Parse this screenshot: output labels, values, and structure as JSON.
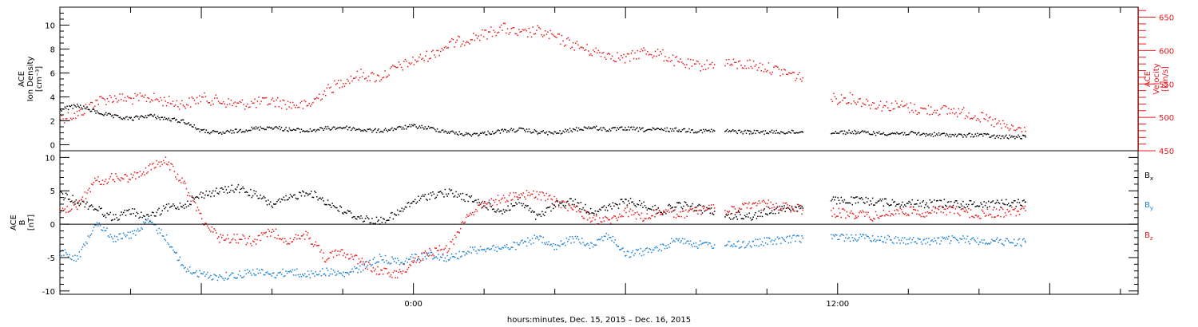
{
  "colors": {
    "axis": "#000000",
    "density": "#000000",
    "velocity": "#e41a1c",
    "bx": "#000000",
    "by": "#1c7fd4",
    "bz": "#e41a1c"
  },
  "chart_data": [
    {
      "type": "scatter",
      "panel": "top",
      "ylabel_lines": [
        "ACE",
        "Ion Density",
        "[cm⁻³]"
      ],
      "ylim": [
        -0.5,
        11.5
      ],
      "yticks": [
        0,
        2,
        4,
        6,
        8,
        10
      ],
      "y2label_lines": [
        "ACE",
        "Velocity",
        "[km/s]"
      ],
      "y2lim": [
        450,
        665
      ],
      "y2ticks": [
        450,
        500,
        550,
        600,
        650
      ],
      "xlim_hours": [
        -10,
        20.5
      ],
      "grid": false,
      "series": [
        {
          "key": "density",
          "axis": "left",
          "segments": [
            {
              "x": [
                -10.0,
                -9.5,
                -9.0,
                -8.5,
                -8.0,
                -7.5,
                -7.0,
                -6.5,
                -6.0,
                -5.5,
                -5.0,
                -4.5,
                -4.0,
                -3.5,
                -3.0,
                -2.5,
                -2.0,
                -1.5,
                -1.0,
                -0.5,
                0.0,
                0.5,
                1.0,
                1.5,
                2.0,
                2.5,
                3.0,
                3.5,
                4.0,
                4.5,
                5.0,
                5.5,
                6.0,
                6.5,
                7.0,
                7.5,
                8.0,
                8.5
              ],
              "y": [
                3.0,
                3.3,
                2.8,
                2.4,
                2.2,
                2.5,
                2.2,
                2.0,
                1.2,
                1.0,
                1.2,
                1.4,
                1.5,
                1.3,
                1.2,
                1.4,
                1.5,
                1.3,
                1.2,
                1.4,
                1.6,
                1.4,
                1.1,
                0.9,
                1.0,
                1.2,
                1.3,
                1.1,
                1.0,
                1.3,
                1.5,
                1.3,
                1.4,
                1.3,
                1.3,
                1.3,
                1.2,
                1.2
              ]
            },
            {
              "x": [
                8.8,
                9.5,
                10.0,
                10.5,
                11.0
              ],
              "y": [
                1.2,
                1.1,
                1.1,
                1.1,
                1.1
              ]
            },
            {
              "x": [
                11.8,
                12.5,
                13.0,
                13.5,
                14.0,
                14.5,
                15.0,
                15.5,
                16.0,
                16.5,
                17.0,
                17.3
              ],
              "y": [
                1.1,
                1.1,
                1.0,
                1.0,
                1.0,
                0.9,
                0.9,
                0.8,
                0.9,
                0.7,
                0.7,
                0.7
              ]
            }
          ]
        },
        {
          "key": "velocity",
          "axis": "right",
          "segments": [
            {
              "x": [
                -10.0,
                -9.5,
                -9.0,
                -8.5,
                -8.0,
                -7.5,
                -7.0,
                -6.5,
                -6.0,
                -5.5,
                -5.0,
                -4.5,
                -4.0,
                -3.5,
                -3.0,
                -2.5,
                -2.0,
                -1.5,
                -1.0,
                -0.5,
                0.0,
                0.5,
                1.0,
                1.5,
                2.0,
                2.5,
                3.0,
                3.5,
                4.0,
                4.5,
                5.0,
                5.5,
                6.0,
                6.5,
                7.0,
                7.5,
                8.0,
                8.5
              ],
              "y": [
                500,
                505,
                525,
                530,
                528,
                530,
                525,
                520,
                530,
                525,
                520,
                522,
                525,
                520,
                518,
                540,
                555,
                565,
                560,
                575,
                585,
                595,
                610,
                618,
                625,
                635,
                625,
                630,
                620,
                610,
                600,
                595,
                588,
                600,
                595,
                582,
                578,
                580
              ]
            },
            {
              "x": [
                8.8,
                9.0,
                9.5,
                10.0,
                10.5,
                11.0
              ],
              "y": [
                585,
                580,
                580,
                575,
                568,
                560
              ]
            },
            {
              "x": [
                11.8,
                12.3,
                12.8,
                13.3,
                13.8,
                14.3,
                14.8,
                15.3,
                15.8,
                16.3,
                16.8,
                17.3
              ],
              "y": [
                528,
                530,
                523,
                518,
                518,
                512,
                512,
                510,
                505,
                495,
                485,
                480
              ]
            }
          ]
        }
      ]
    },
    {
      "type": "scatter",
      "panel": "bottom",
      "ylabel_lines": [
        "ACE",
        "B",
        "[nT]"
      ],
      "ylim": [
        -10.5,
        11
      ],
      "yticks": [
        -10,
        -5,
        0,
        5,
        10
      ],
      "xlim_hours": [
        -10,
        20.5
      ],
      "xtick_labels": [
        "0:00",
        "12:00"
      ],
      "xlabel": "hours:minutes, Dec. 15, 2015 – Dec. 16, 2015",
      "grid": false,
      "legend": "right",
      "series": [
        {
          "key": "bx",
          "name": "Bx",
          "segments": [
            {
              "x": [
                -10.0,
                -9.5,
                -9.0,
                -8.5,
                -8.0,
                -7.5,
                -7.0,
                -6.5,
                -6.0,
                -5.5,
                -5.0,
                -4.5,
                -4.0,
                -3.5,
                -3.0,
                -2.5,
                -2.0,
                -1.5,
                -1.0,
                -0.5,
                0.0,
                0.5,
                1.0,
                1.5,
                2.0,
                2.5,
                3.0,
                3.5,
                4.0,
                4.5,
                5.0,
                5.5,
                6.0,
                6.5,
                7.0,
                7.5,
                8.0,
                8.5
              ],
              "y": [
                4.5,
                3.5,
                2.5,
                1.0,
                2.0,
                1.0,
                2.5,
                3.0,
                4.5,
                5.0,
                5.5,
                4.5,
                3.0,
                4.0,
                5.0,
                3.5,
                2.0,
                1.0,
                0.5,
                1.5,
                3.5,
                4.5,
                4.8,
                4.0,
                3.0,
                2.0,
                3.5,
                1.0,
                3.0,
                3.5,
                2.0,
                2.5,
                3.5,
                3.0,
                2.0,
                3.0,
                2.5,
                2.0
              ]
            },
            {
              "x": [
                8.8,
                9.2,
                9.6,
                10.0,
                10.5,
                11.0
              ],
              "y": [
                1.0,
                1.5,
                1.2,
                2.0,
                2.5,
                2.5
              ]
            },
            {
              "x": [
                11.8,
                12.5,
                13.0,
                13.5,
                14.0,
                14.5,
                15.0,
                15.5,
                16.0,
                16.5,
                17.0,
                17.3
              ],
              "y": [
                3.6,
                3.6,
                3.5,
                3.3,
                3.2,
                3.1,
                3.2,
                3.1,
                3.1,
                3.2,
                3.3,
                3.4
              ]
            }
          ]
        },
        {
          "key": "by",
          "name": "By",
          "segments": [
            {
              "x": [
                -10.0,
                -9.5,
                -9.0,
                -8.5,
                -8.0,
                -7.5,
                -7.0,
                -6.5,
                -6.0,
                -5.5,
                -5.0,
                -4.5,
                -4.0,
                -3.5,
                -3.0,
                -2.5,
                -2.0,
                -1.5,
                -1.0,
                -0.5,
                0.0,
                0.5,
                1.0,
                1.5,
                2.0,
                2.5,
                3.0,
                3.5,
                4.0,
                4.5,
                5.0,
                5.5,
                6.0,
                6.5,
                7.0,
                7.5,
                8.0,
                8.5
              ],
              "y": [
                -4.0,
                -5.0,
                0.5,
                -2.0,
                -1.5,
                0.5,
                -2.0,
                -6.5,
                -7.5,
                -7.8,
                -7.5,
                -7.0,
                -7.5,
                -7.0,
                -7.5,
                -7.0,
                -7.5,
                -6.5,
                -5.0,
                -5.5,
                -5.0,
                -4.5,
                -5.0,
                -4.0,
                -3.5,
                -3.5,
                -3.0,
                -2.0,
                -3.5,
                -2.0,
                -3.0,
                -1.5,
                -4.5,
                -4.0,
                -3.5,
                -2.0,
                -3.0,
                -3.0
              ]
            },
            {
              "x": [
                8.8,
                9.2,
                9.6,
                10.0,
                10.5,
                11.0
              ],
              "y": [
                -3.0,
                -3.0,
                -2.8,
                -2.5,
                -2.3,
                -2.0
              ]
            },
            {
              "x": [
                11.8,
                12.5,
                13.0,
                13.5,
                14.0,
                14.5,
                15.0,
                15.5,
                16.0,
                16.5,
                17.0,
                17.3
              ],
              "y": [
                -1.8,
                -1.9,
                -2.0,
                -2.2,
                -2.4,
                -2.5,
                -2.3,
                -2.2,
                -2.4,
                -2.5,
                -2.6,
                -2.6
              ]
            }
          ]
        },
        {
          "key": "bz",
          "name": "Bz",
          "segments": [
            {
              "x": [
                -10.0,
                -9.5,
                -9.0,
                -8.5,
                -8.0,
                -7.5,
                -7.0,
                -6.5,
                -6.0,
                -5.5,
                -5.0,
                -4.5,
                -4.0,
                -3.5,
                -3.0,
                -2.5,
                -2.0,
                -1.5,
                -1.0,
                -0.5,
                0.0,
                0.5,
                1.0,
                1.5,
                2.0,
                2.5,
                3.0,
                3.5,
                4.0,
                4.5,
                5.0,
                5.5,
                6.0,
                6.5,
                7.0,
                7.5,
                8.0,
                8.5
              ],
              "y": [
                2.0,
                3.0,
                6.5,
                7.0,
                7.0,
                8.5,
                9.5,
                6.0,
                1.0,
                -2.0,
                -2.0,
                -2.5,
                -1.0,
                -2.5,
                -1.5,
                -5.0,
                -4.0,
                -5.5,
                -7.0,
                -7.5,
                -5.5,
                -4.0,
                -3.5,
                1.5,
                3.0,
                4.0,
                4.5,
                4.5,
                3.5,
                2.5,
                1.0,
                0.5,
                2.0,
                1.0,
                2.0,
                1.5,
                2.0,
                2.5
              ]
            },
            {
              "x": [
                8.8,
                9.2,
                9.6,
                10.0,
                10.5,
                11.0
              ],
              "y": [
                2.0,
                2.5,
                2.8,
                3.0,
                2.8,
                2.2
              ]
            },
            {
              "x": [
                11.8,
                12.5,
                13.0,
                13.5,
                14.0,
                14.5,
                15.0,
                15.5,
                16.0,
                16.5,
                17.0,
                17.3
              ],
              "y": [
                1.8,
                1.6,
                1.2,
                1.8,
                2.0,
                1.8,
                2.2,
                2.0,
                1.5,
                1.8,
                2.0,
                2.1
              ]
            }
          ]
        }
      ]
    }
  ]
}
